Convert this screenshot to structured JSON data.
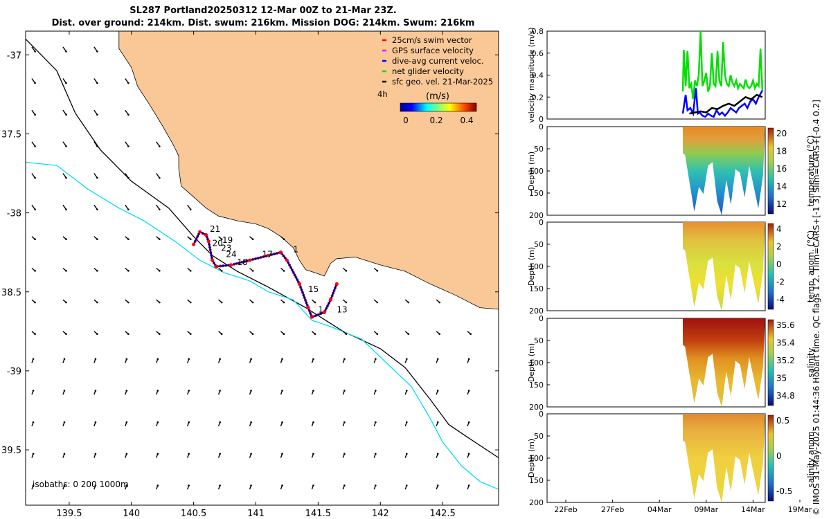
{
  "title_line1": "SL287 Portland20250312 12-Mar 00Z to 21-Mar 23Z.",
  "title_line2": "Dist. over ground: 214km. Dist. swum: 216km. Mission DOG: 214km. Swum: 216km",
  "side_label": "© IMOS 31-May-2025 01:44:36 Hobart time. QC flags 1  2. Tlim=CARS+[-1 3] Slim=CARS+[-0.4 0.2]",
  "colors": {
    "land": "#f9c896",
    "coast_isobath": "#000000",
    "isobath_1000": "#00e0f0",
    "track_red": "#ff0000",
    "track_blue": "#0000ff",
    "net_green": "#00e000",
    "geo_black": "#000000"
  },
  "chart_data": [
    {
      "type": "map",
      "name": "glider track map",
      "xlim": [
        139.15,
        142.95
      ],
      "ylim": [
        -39.85,
        -36.85
      ],
      "xticks": [
        139.5,
        140,
        140.5,
        141,
        141.5,
        142,
        142.5
      ],
      "xtick_labels": [
        "139.5",
        "140",
        "140.5",
        "141",
        "141.5",
        "142",
        "142.5"
      ],
      "yticks": [
        -37,
        -37.5,
        -38,
        -38.5,
        -39,
        -39.5
      ],
      "ytick_labels": [
        "-37",
        "37.5",
        "-38",
        "38.5",
        "-39",
        "39.5"
      ],
      "coastline": [
        [
          139.1,
          -36.85
        ],
        [
          139.9,
          -36.85
        ],
        [
          139.9,
          -36.96
        ],
        [
          140.0,
          -37.08
        ],
        [
          140.05,
          -37.2
        ],
        [
          140.15,
          -37.32
        ],
        [
          140.25,
          -37.45
        ],
        [
          140.33,
          -37.56
        ],
        [
          140.38,
          -37.64
        ],
        [
          140.38,
          -37.72
        ],
        [
          140.4,
          -37.83
        ],
        [
          140.5,
          -37.9
        ],
        [
          140.6,
          -37.97
        ],
        [
          140.7,
          -38.02
        ],
        [
          140.85,
          -38.05
        ],
        [
          141.0,
          -38.07
        ],
        [
          141.1,
          -38.1
        ],
        [
          141.2,
          -38.15
        ],
        [
          141.3,
          -38.22
        ],
        [
          141.35,
          -38.3
        ],
        [
          141.4,
          -38.36
        ],
        [
          141.48,
          -38.38
        ],
        [
          141.55,
          -38.4
        ],
        [
          141.6,
          -38.32
        ],
        [
          141.65,
          -38.29
        ],
        [
          141.8,
          -38.28
        ],
        [
          142.0,
          -38.33
        ],
        [
          142.2,
          -38.37
        ],
        [
          142.4,
          -38.45
        ],
        [
          142.6,
          -38.52
        ],
        [
          142.8,
          -38.6
        ],
        [
          142.95,
          -38.61
        ],
        [
          142.95,
          -36.85
        ]
      ],
      "isobath_200": [
        [
          139.15,
          -36.9
        ],
        [
          139.4,
          -37.1
        ],
        [
          139.55,
          -37.37
        ],
        [
          139.75,
          -37.6
        ],
        [
          140.0,
          -37.8
        ],
        [
          140.3,
          -37.97
        ],
        [
          140.5,
          -38.15
        ],
        [
          140.65,
          -38.27
        ],
        [
          140.85,
          -38.37
        ],
        [
          141.1,
          -38.47
        ],
        [
          141.4,
          -38.6
        ],
        [
          141.7,
          -38.75
        ],
        [
          142.0,
          -38.86
        ],
        [
          142.2,
          -38.98
        ],
        [
          142.4,
          -39.18
        ],
        [
          142.55,
          -39.34
        ],
        [
          142.7,
          -39.42
        ],
        [
          142.95,
          -39.55
        ]
      ],
      "isobath_1000": [
        [
          139.15,
          -37.68
        ],
        [
          139.4,
          -37.7
        ],
        [
          139.65,
          -37.85
        ],
        [
          139.9,
          -37.97
        ],
        [
          140.1,
          -38.05
        ],
        [
          140.35,
          -38.18
        ],
        [
          140.55,
          -38.3
        ],
        [
          140.75,
          -38.38
        ],
        [
          140.95,
          -38.43
        ],
        [
          141.1,
          -38.5
        ],
        [
          141.3,
          -38.55
        ],
        [
          141.45,
          -38.68
        ],
        [
          141.6,
          -38.72
        ],
        [
          141.85,
          -38.8
        ],
        [
          142.05,
          -38.95
        ],
        [
          142.25,
          -39.1
        ],
        [
          142.4,
          -39.3
        ],
        [
          142.5,
          -39.45
        ],
        [
          142.65,
          -39.6
        ],
        [
          142.8,
          -39.7
        ],
        [
          142.95,
          -39.75
        ]
      ],
      "track": [
        [
          140.5,
          -38.2
        ],
        [
          140.55,
          -38.12
        ],
        [
          140.6,
          -38.14
        ],
        [
          140.62,
          -38.18
        ],
        [
          140.65,
          -38.3
        ],
        [
          140.68,
          -38.34
        ],
        [
          140.8,
          -38.33
        ],
        [
          140.95,
          -38.3
        ],
        [
          141.1,
          -38.27
        ],
        [
          141.2,
          -38.25
        ],
        [
          141.25,
          -38.3
        ],
        [
          141.35,
          -38.45
        ],
        [
          141.42,
          -38.6
        ],
        [
          141.45,
          -38.66
        ],
        [
          141.55,
          -38.63
        ],
        [
          141.6,
          -38.55
        ],
        [
          141.65,
          -38.45
        ]
      ],
      "track_labels": [
        {
          "text": "21",
          "lon": 140.63,
          "lat": -38.12
        },
        {
          "text": "19",
          "lon": 140.73,
          "lat": -38.19
        },
        {
          "text": "20",
          "lon": 140.65,
          "lat": -38.21
        },
        {
          "text": "23",
          "lon": 140.72,
          "lat": -38.24
        },
        {
          "text": "24",
          "lon": 140.76,
          "lat": -38.28
        },
        {
          "text": "18",
          "lon": 140.85,
          "lat": -38.33
        },
        {
          "text": "17",
          "lon": 141.05,
          "lat": -38.28
        },
        {
          "text": "1",
          "lon": 141.3,
          "lat": -38.25
        },
        {
          "text": "15",
          "lon": 141.42,
          "lat": -38.5
        },
        {
          "text": "1",
          "lon": 141.5,
          "lat": -38.63
        },
        {
          "text": "13",
          "lon": 141.65,
          "lat": -38.63
        }
      ],
      "legend": [
        "25cm/s swim vector",
        "GPS surface velocity",
        "dive-avg current veloc.",
        "net glider velocity",
        "sfc geo. vel. 21-Mar-2025"
      ],
      "legend_colors": [
        "#ff0000",
        "#ff00ff",
        "#0000ff",
        "#00e000",
        "#000000"
      ],
      "legend_extra": "4h",
      "colorbar_title": "(m/s)",
      "colorbar_ticks": [
        "0",
        "0.2",
        "0.4"
      ],
      "isobath_note": "isobaths: 0   200  1000m"
    },
    {
      "type": "line",
      "name": "velocity magnitude",
      "ylabel": "velocity magnitude (m/s)",
      "ylim": [
        0,
        0.8
      ],
      "yticks": [
        "0",
        "0.2",
        "0.4",
        "0.6",
        "0.8"
      ],
      "series": [
        {
          "name": "net glider velocity",
          "color": "#00e000",
          "x": [
            13.5,
            13.6,
            13.8,
            14.0,
            14.2,
            14.4,
            14.6,
            14.8,
            15.0,
            15.2,
            15.4,
            15.6,
            15.8,
            16.0,
            16.2,
            16.4,
            16.6,
            16.8,
            17.0,
            17.2,
            17.4,
            17.6,
            17.8,
            18.0,
            18.2,
            18.4,
            18.6,
            18.8,
            19.0,
            19.2,
            19.4,
            19.6,
            19.8,
            20.0,
            20.2,
            20.4,
            20.6,
            20.8,
            21.0,
            21.2,
            21.4,
            21.6,
            21.8,
            22.0
          ],
          "y": [
            0.25,
            0.63,
            0.3,
            0.62,
            0.28,
            0.32,
            0.18,
            0.35,
            0.3,
            0.4,
            0.8,
            0.3,
            0.35,
            0.42,
            0.25,
            0.3,
            0.6,
            0.32,
            0.3,
            0.62,
            0.35,
            0.3,
            0.7,
            0.4,
            0.32,
            0.3,
            0.4,
            0.33,
            0.3,
            0.35,
            0.28,
            0.32,
            0.3,
            0.28,
            0.36,
            0.3,
            0.28,
            0.3,
            0.35,
            0.28,
            0.32,
            0.3,
            0.64,
            0.26
          ]
        },
        {
          "name": "dive-avg current veloc.",
          "color": "#0000ff",
          "x": [
            13.5,
            13.8,
            14.0,
            14.3,
            14.6,
            14.9,
            15.1,
            15.3,
            15.6,
            15.9,
            16.2,
            16.5,
            16.8,
            17.1,
            17.4,
            17.7,
            18.0,
            18.3,
            18.6,
            18.9,
            19.2,
            19.5,
            19.8,
            20.1,
            20.4,
            20.7,
            21.0,
            21.3,
            21.6,
            22.0
          ],
          "y": [
            0.05,
            0.22,
            0.08,
            0.1,
            0.05,
            0.28,
            0.05,
            0.06,
            0.03,
            0.02,
            0.05,
            0.03,
            0.02,
            0.08,
            0.04,
            0.06,
            0.03,
            0.06,
            0.1,
            0.08,
            0.06,
            0.1,
            0.12,
            0.14,
            0.1,
            0.16,
            0.18,
            0.14,
            0.2,
            0.26
          ]
        },
        {
          "name": "sfc geo. vel.",
          "color": "#000000",
          "x": [
            14.2,
            14.8,
            15.4,
            16.0,
            16.6,
            17.2,
            17.8,
            18.4,
            19.0,
            19.6,
            20.2,
            20.8,
            21.4,
            22.0
          ],
          "y": [
            0.05,
            0.06,
            0.07,
            0.06,
            0.1,
            0.09,
            0.12,
            0.14,
            0.12,
            0.16,
            0.2,
            0.18,
            0.22,
            0.2
          ]
        }
      ]
    },
    {
      "type": "heatmap",
      "name": "temperature",
      "ylabel": "Depth (m)",
      "colorbar_label": "temperature (°C)",
      "yticks": [
        "0",
        "50",
        "100",
        "150",
        "200"
      ],
      "colorbar_ticks": [
        "20",
        "18",
        "16",
        "14",
        "12"
      ]
    },
    {
      "type": "heatmap",
      "name": "temp. anom.",
      "ylabel": "Depth (m)",
      "colorbar_label": "temp. anom. (°C)",
      "yticks": [
        "0",
        "50",
        "100",
        "150",
        "200"
      ],
      "colorbar_ticks": [
        "4",
        "2",
        "0",
        "-2",
        "-4"
      ]
    },
    {
      "type": "heatmap",
      "name": "salinity",
      "ylabel": "Depth (m)",
      "colorbar_label": "salinity",
      "yticks": [
        "0",
        "50",
        "100",
        "150",
        "200"
      ],
      "colorbar_ticks": [
        "35.6",
        "35.4",
        "35.2",
        "35",
        "34.8"
      ]
    },
    {
      "type": "heatmap",
      "name": "salinity anom.",
      "ylabel": "Depth (m)",
      "colorbar_label": "salinity anom.",
      "yticks": [
        "0",
        "50",
        "100",
        "150",
        "200"
      ],
      "colorbar_ticks": [
        "0.5",
        "0",
        "-0.5"
      ]
    }
  ],
  "time_axis": {
    "xlim_days": [
      -1,
      22.3
    ],
    "tick_days": [
      1,
      6,
      11,
      16,
      21,
      26
    ],
    "tick_labels": [
      "22Feb",
      "27Feb",
      "04Mar",
      "09Mar",
      "14Mar",
      "19Mar"
    ],
    "data_start_day": 13.5,
    "data_end_day": 22.3
  }
}
